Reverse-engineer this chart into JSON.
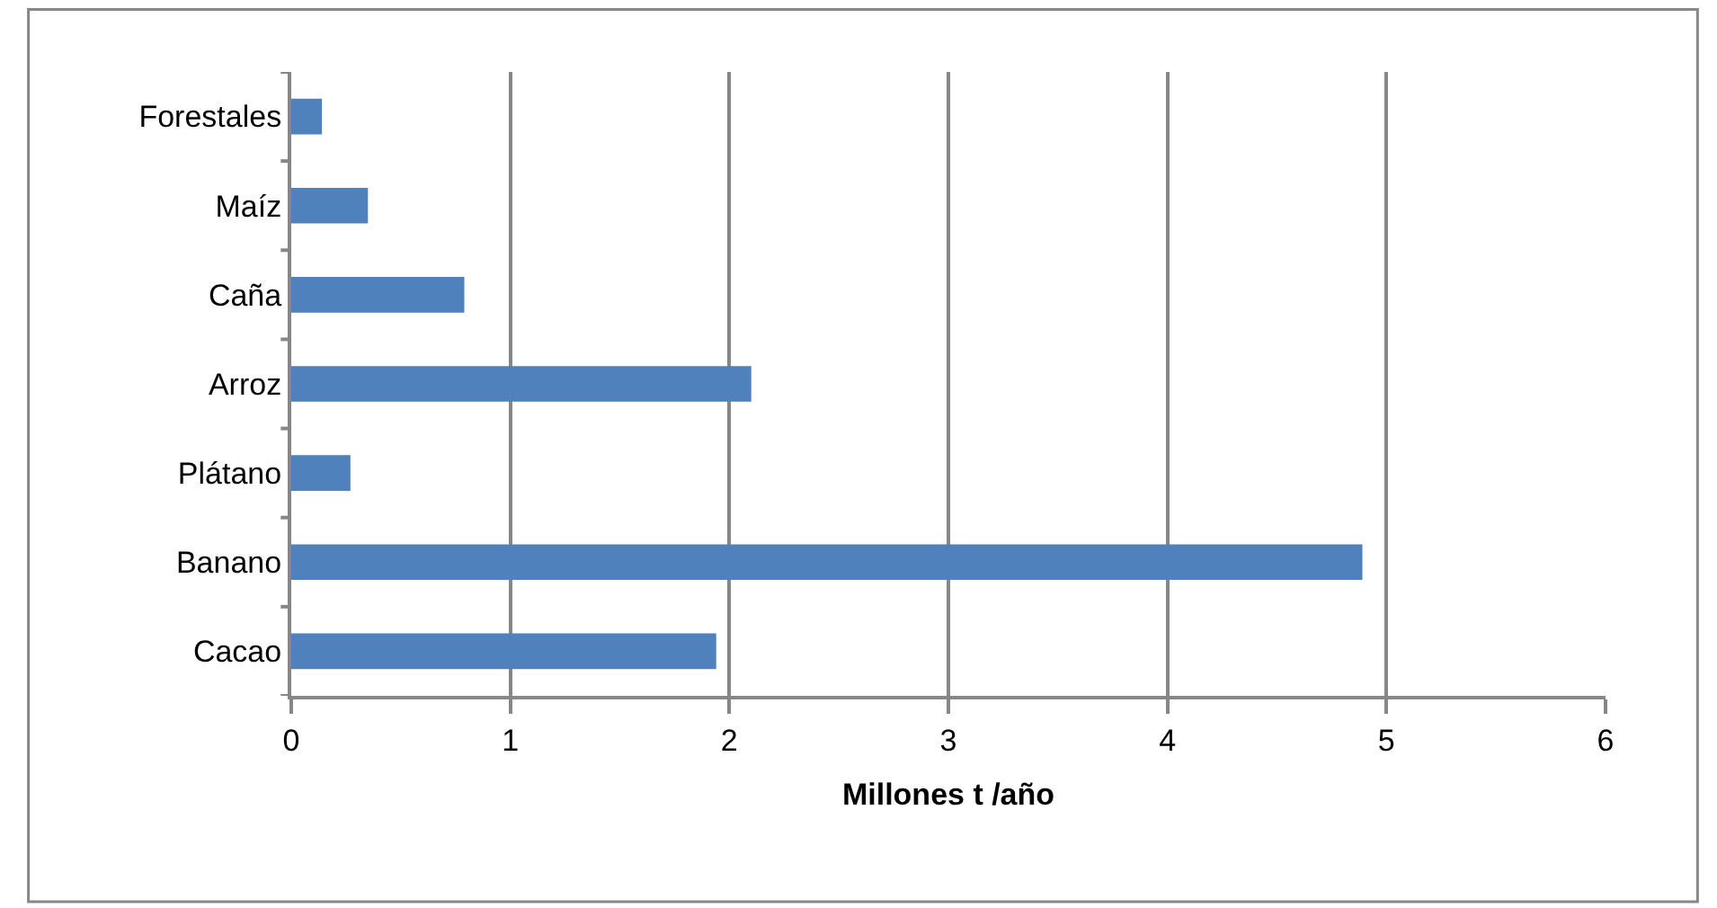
{
  "chart_data": {
    "type": "bar",
    "orientation": "horizontal",
    "xlabel": "Millones t /año",
    "categories": [
      "Forestales",
      "Maíz",
      "Caña",
      "Arroz",
      "Plátano",
      "Banano",
      "Cacao"
    ],
    "values": [
      0.14,
      0.35,
      0.79,
      2.1,
      0.27,
      4.89,
      1.94
    ],
    "color": "#4f81bd",
    "xlim": [
      0,
      6
    ],
    "xticks": [
      0,
      1,
      2,
      3,
      4,
      5,
      6
    ],
    "grid": "x"
  }
}
